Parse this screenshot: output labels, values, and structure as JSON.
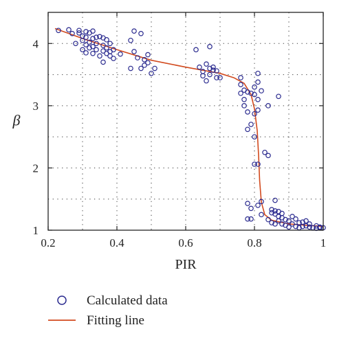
{
  "chart_data": {
    "type": "scatter",
    "xlabel": "PIR",
    "ylabel": "β",
    "xlim": [
      0.2,
      1.0
    ],
    "ylim": [
      1.0,
      4.5
    ],
    "x_ticks": [
      "0.2",
      "0.4",
      "0.6",
      "0.8",
      "1"
    ],
    "y_ticks": [
      "1",
      "2",
      "3",
      "4"
    ],
    "x_tick_values": [
      0.2,
      0.4,
      0.6,
      0.8,
      1.0
    ],
    "y_tick_values": [
      1,
      2,
      3,
      4
    ],
    "grid": "dotted",
    "legend_position": "below",
    "series": [
      {
        "name": "Calculated data",
        "kind": "scatter",
        "marker": "open-circle",
        "color": "#2b2b8f",
        "points": [
          [
            0.23,
            4.21
          ],
          [
            0.26,
            4.22
          ],
          [
            0.27,
            4.16
          ],
          [
            0.28,
            4.0
          ],
          [
            0.29,
            4.21
          ],
          [
            0.29,
            4.17
          ],
          [
            0.3,
            4.12
          ],
          [
            0.3,
            4.05
          ],
          [
            0.3,
            3.9
          ],
          [
            0.31,
            4.19
          ],
          [
            0.31,
            4.1
          ],
          [
            0.31,
            3.98
          ],
          [
            0.31,
            3.85
          ],
          [
            0.32,
            4.17
          ],
          [
            0.32,
            4.02
          ],
          [
            0.32,
            3.93
          ],
          [
            0.33,
            4.2
          ],
          [
            0.33,
            4.08
          ],
          [
            0.33,
            3.95
          ],
          [
            0.33,
            3.84
          ],
          [
            0.34,
            4.1
          ],
          [
            0.34,
            4.0
          ],
          [
            0.34,
            3.9
          ],
          [
            0.35,
            3.8
          ],
          [
            0.35,
            4.11
          ],
          [
            0.36,
            4.09
          ],
          [
            0.36,
            3.97
          ],
          [
            0.36,
            3.88
          ],
          [
            0.36,
            3.7
          ],
          [
            0.37,
            4.06
          ],
          [
            0.37,
            3.93
          ],
          [
            0.37,
            3.84
          ],
          [
            0.38,
            4.0
          ],
          [
            0.38,
            3.87
          ],
          [
            0.38,
            3.8
          ],
          [
            0.39,
            3.9
          ],
          [
            0.39,
            3.76
          ],
          [
            0.41,
            3.83
          ],
          [
            0.44,
            3.6
          ],
          [
            0.44,
            4.05
          ],
          [
            0.45,
            4.2
          ],
          [
            0.45,
            3.87
          ],
          [
            0.46,
            3.77
          ],
          [
            0.47,
            3.6
          ],
          [
            0.47,
            4.16
          ],
          [
            0.48,
            3.74
          ],
          [
            0.48,
            3.65
          ],
          [
            0.49,
            3.82
          ],
          [
            0.49,
            3.69
          ],
          [
            0.5,
            3.52
          ],
          [
            0.51,
            3.6
          ],
          [
            0.63,
            3.9
          ],
          [
            0.64,
            3.62
          ],
          [
            0.65,
            3.55
          ],
          [
            0.65,
            3.48
          ],
          [
            0.66,
            3.67
          ],
          [
            0.66,
            3.4
          ],
          [
            0.67,
            3.95
          ],
          [
            0.67,
            3.6
          ],
          [
            0.67,
            3.5
          ],
          [
            0.68,
            3.62
          ],
          [
            0.68,
            3.57
          ],
          [
            0.69,
            3.45
          ],
          [
            0.69,
            3.56
          ],
          [
            0.7,
            3.45
          ],
          [
            0.76,
            3.45
          ],
          [
            0.76,
            3.34
          ],
          [
            0.76,
            3.2
          ],
          [
            0.77,
            3.0
          ],
          [
            0.77,
            3.25
          ],
          [
            0.77,
            3.1
          ],
          [
            0.78,
            3.22
          ],
          [
            0.78,
            2.9
          ],
          [
            0.78,
            2.62
          ],
          [
            0.78,
            1.43
          ],
          [
            0.78,
            1.18
          ],
          [
            0.79,
            3.2
          ],
          [
            0.79,
            2.7
          ],
          [
            0.79,
            1.35
          ],
          [
            0.79,
            1.18
          ],
          [
            0.8,
            3.3
          ],
          [
            0.8,
            3.18
          ],
          [
            0.8,
            2.87
          ],
          [
            0.8,
            2.5
          ],
          [
            0.8,
            2.06
          ],
          [
            0.81,
            3.52
          ],
          [
            0.81,
            3.38
          ],
          [
            0.81,
            3.1
          ],
          [
            0.81,
            2.93
          ],
          [
            0.81,
            2.06
          ],
          [
            0.81,
            1.4
          ],
          [
            0.82,
            3.24
          ],
          [
            0.82,
            1.25
          ],
          [
            0.82,
            1.46
          ],
          [
            0.83,
            2.25
          ],
          [
            0.84,
            2.2
          ],
          [
            0.84,
            3.0
          ],
          [
            0.84,
            1.17
          ],
          [
            0.85,
            1.33
          ],
          [
            0.85,
            1.28
          ],
          [
            0.85,
            1.12
          ],
          [
            0.86,
            1.31
          ],
          [
            0.86,
            1.26
          ],
          [
            0.86,
            1.1
          ],
          [
            0.86,
            1.48
          ],
          [
            0.87,
            1.3
          ],
          [
            0.87,
            1.22
          ],
          [
            0.87,
            1.15
          ],
          [
            0.87,
            3.15
          ],
          [
            0.88,
            1.27
          ],
          [
            0.88,
            1.1
          ],
          [
            0.88,
            1.2
          ],
          [
            0.89,
            1.08
          ],
          [
            0.89,
            1.17
          ],
          [
            0.9,
            1.15
          ],
          [
            0.9,
            1.05
          ],
          [
            0.91,
            1.22
          ],
          [
            0.91,
            1.1
          ],
          [
            0.92,
            1.18
          ],
          [
            0.92,
            1.06
          ],
          [
            0.93,
            1.12
          ],
          [
            0.93,
            1.04
          ],
          [
            0.94,
            1.13
          ],
          [
            0.94,
            1.06
          ],
          [
            0.95,
            1.07
          ],
          [
            0.95,
            1.15
          ],
          [
            0.96,
            1.05
          ],
          [
            0.96,
            1.1
          ],
          [
            0.97,
            1.04
          ],
          [
            0.98,
            1.07
          ],
          [
            0.98,
            1.03
          ],
          [
            0.99,
            1.05
          ],
          [
            0.99,
            1.04
          ],
          [
            1.0,
            1.04
          ]
        ]
      },
      {
        "name": "Fitting line",
        "kind": "line",
        "color": "#d24a1e",
        "points": [
          [
            0.22,
            4.24
          ],
          [
            0.3,
            4.08
          ],
          [
            0.4,
            3.9
          ],
          [
            0.5,
            3.73
          ],
          [
            0.6,
            3.62
          ],
          [
            0.7,
            3.52
          ],
          [
            0.74,
            3.45
          ],
          [
            0.77,
            3.36
          ],
          [
            0.79,
            3.18
          ],
          [
            0.8,
            2.95
          ],
          [
            0.808,
            2.6
          ],
          [
            0.812,
            2.2
          ],
          [
            0.815,
            1.8
          ],
          [
            0.82,
            1.45
          ],
          [
            0.83,
            1.25
          ],
          [
            0.85,
            1.16
          ],
          [
            0.9,
            1.1
          ],
          [
            0.95,
            1.08
          ],
          [
            1.0,
            1.06
          ]
        ]
      }
    ]
  }
}
